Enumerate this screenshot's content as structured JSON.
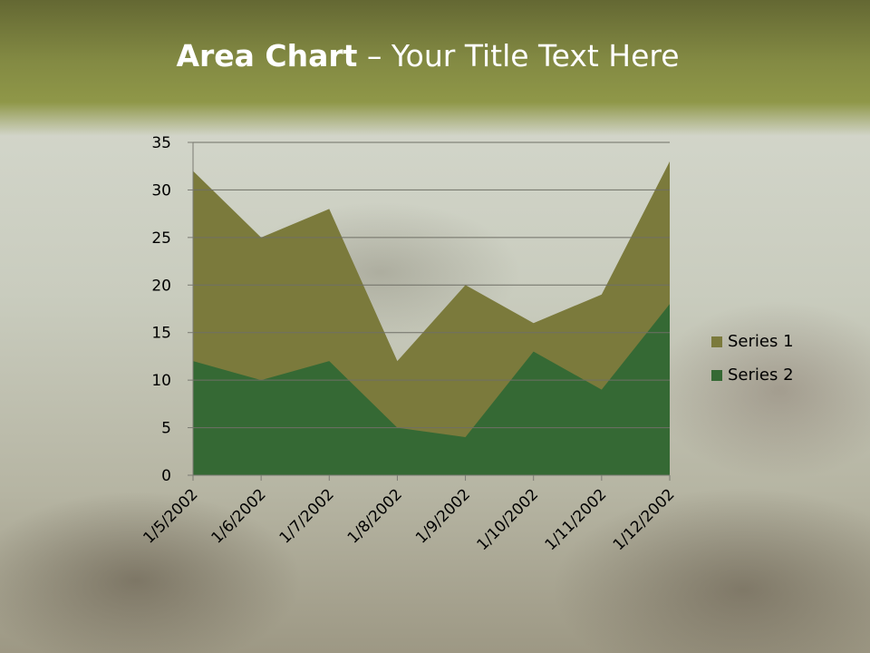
{
  "title": {
    "bold": "Area Chart",
    "rest": " – Your Title Text Here"
  },
  "colors": {
    "series1": "#7b7a3c",
    "series2": "#356934"
  },
  "chart_data": {
    "type": "area",
    "stacked": false,
    "x": [
      "1/5/2002",
      "1/6/2002",
      "1/7/2002",
      "1/8/2002",
      "1/9/2002",
      "1/10/2002",
      "1/11/2002",
      "1/12/2002"
    ],
    "series": [
      {
        "name": "Series 1",
        "values": [
          32,
          25,
          28,
          12,
          20,
          16,
          19,
          33
        ]
      },
      {
        "name": "Series 2",
        "values": [
          12,
          10,
          12,
          5,
          4,
          13,
          9,
          18
        ]
      }
    ],
    "yticks": [
      "0",
      "5",
      "10",
      "15",
      "20",
      "25",
      "30",
      "35"
    ],
    "ylim": [
      0,
      35
    ],
    "grid": true,
    "legend": "right"
  }
}
